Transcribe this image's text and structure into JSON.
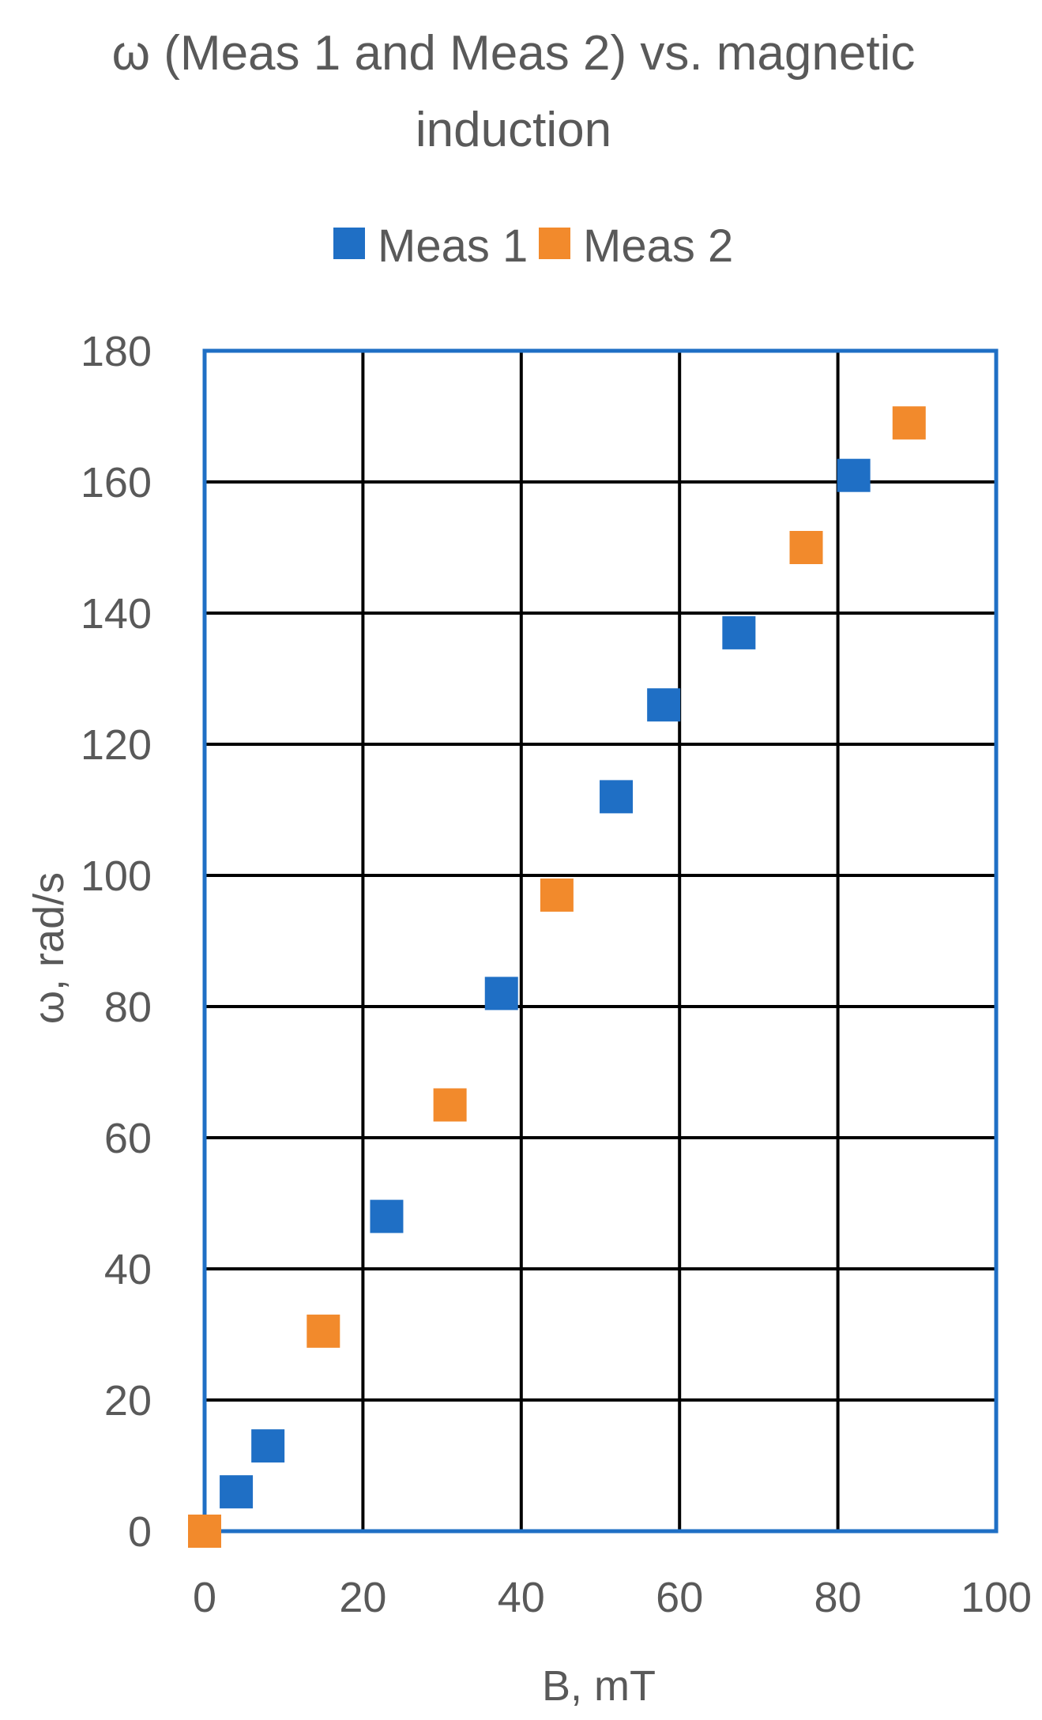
{
  "chart_data": {
    "type": "scatter",
    "title": "ω (Meas 1 and Meas 2) vs. magnetic induction",
    "title_lines": [
      "ω (Meas 1 and Meas 2) vs. magnetic",
      "induction"
    ],
    "xlabel": "B, mT",
    "ylabel": "ω, rad/s",
    "xlim": [
      0,
      100
    ],
    "ylim": [
      0,
      180
    ],
    "x_ticks": [
      0,
      20,
      40,
      60,
      80,
      100
    ],
    "y_ticks": [
      0,
      20,
      40,
      60,
      80,
      100,
      120,
      140,
      160,
      180
    ],
    "grid": true,
    "legend_position": "top",
    "plot_border_color": "#1f6fc5",
    "grid_color": "#000000",
    "series": [
      {
        "name": "Meas 1",
        "color": "#1f6fc5",
        "marker": "square",
        "x": [
          4,
          8,
          23,
          37.5,
          52,
          58,
          67.5,
          82
        ],
        "y": [
          6,
          13,
          48,
          82,
          112,
          126,
          137,
          161
        ]
      },
      {
        "name": "Meas 2",
        "color": "#f28a2c",
        "marker": "square",
        "x": [
          0,
          15,
          31,
          44.5,
          76,
          89
        ],
        "y": [
          0,
          30.5,
          65,
          97,
          150,
          169
        ]
      }
    ]
  }
}
